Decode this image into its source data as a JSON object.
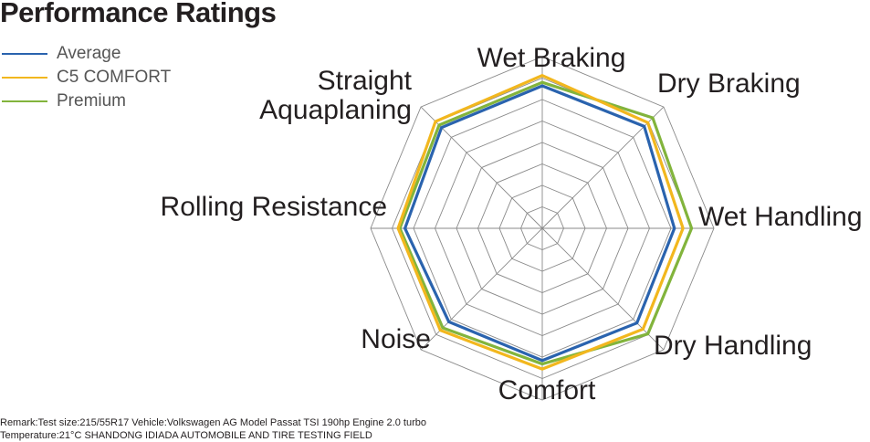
{
  "chart_data": {
    "type": "radar",
    "title": "Performance Ratings",
    "categories": [
      "Wet Braking",
      "Dry Braking",
      "Wet Handling",
      "Dry Handling",
      "Comfort",
      "Noise",
      "Rolling Resistance",
      "Straight Aquaplaning"
    ],
    "label_lines": [
      [
        "Wet Braking"
      ],
      [
        "Dry Braking"
      ],
      [
        "Wet Handling"
      ],
      [
        "Dry Handling"
      ],
      [
        "Comfort"
      ],
      [
        "Noise"
      ],
      [
        "Rolling Resistance"
      ],
      [
        "Straight",
        "Aquaplaning"
      ]
    ],
    "rmax": 10,
    "grid_levels": 8,
    "legend_position": "top-left",
    "series": [
      {
        "name": "Average",
        "color": "#2a63ae",
        "values": [
          8.3,
          8.4,
          7.7,
          7.8,
          7.7,
          7.7,
          8.0,
          8.3
        ]
      },
      {
        "name": "C5 COMFORT",
        "color": "#f2b71e",
        "values": [
          8.9,
          8.7,
          8.2,
          8.3,
          8.2,
          8.4,
          8.4,
          8.8
        ]
      },
      {
        "name": "Premium",
        "color": "#82b43c",
        "values": [
          8.5,
          9.1,
          8.7,
          8.7,
          7.9,
          8.2,
          8.3,
          8.5
        ]
      }
    ]
  },
  "remark": {
    "line1": "Remark:Test size:215/55R17 Vehicle:Volkswagen AG Model Passat TSI 190hp Engine 2.0 turbo",
    "line2": "Temperature:21°C SHANDONG IDIADA AUTOMOBILE AND TIRE TESTING FIELD"
  }
}
